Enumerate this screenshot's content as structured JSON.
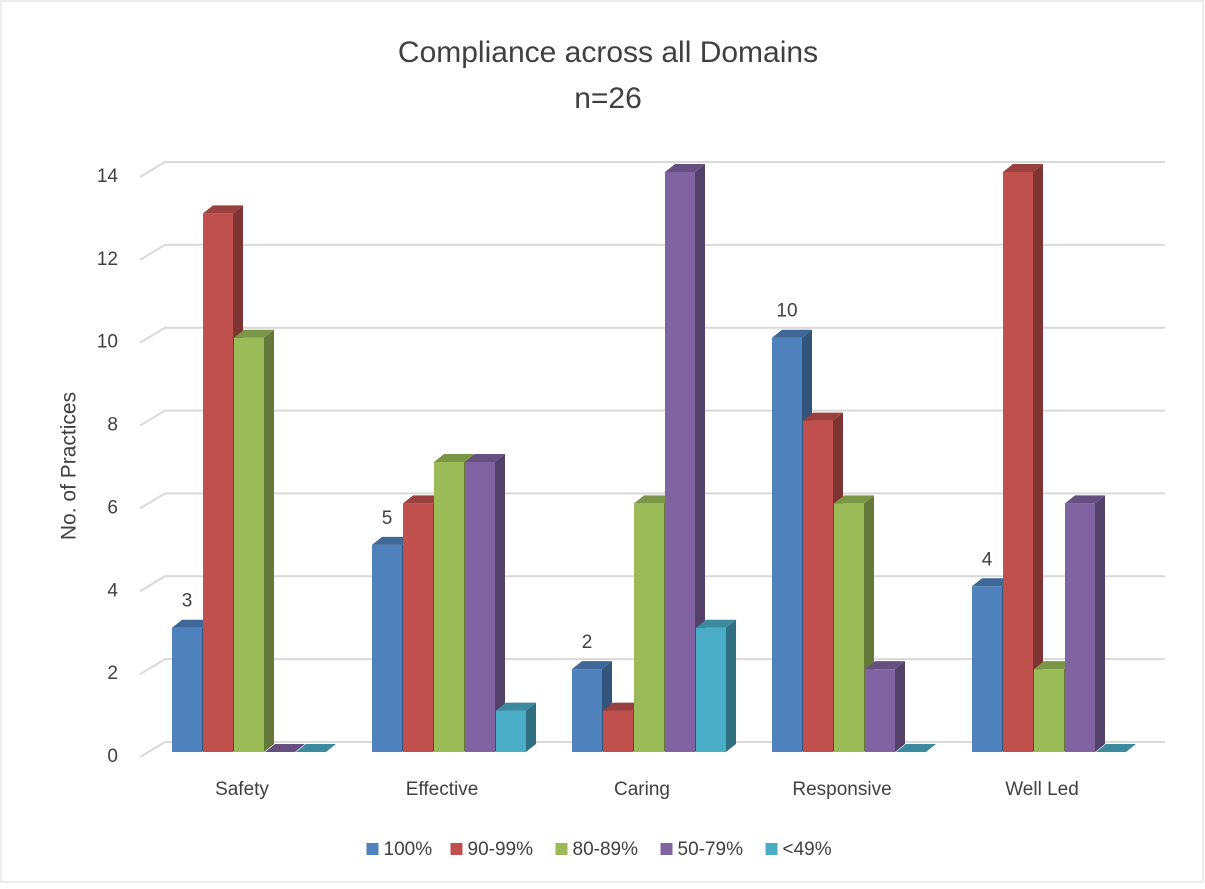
{
  "chart_data": {
    "type": "bar3d",
    "title": "Compliance across all Domains",
    "subtitle": "n=26",
    "y_label": "No. of Practices",
    "categories": [
      "Safety",
      "Effective",
      "Caring",
      "Responsive",
      "Well Led"
    ],
    "series": [
      {
        "name": "100%",
        "color": "#4f81bd",
        "values": [
          3,
          5,
          2,
          10,
          4
        ],
        "data_labels": true
      },
      {
        "name": "90-99%",
        "color": "#c0504d",
        "values": [
          13,
          6,
          1,
          8,
          14
        ]
      },
      {
        "name": "80-89%",
        "color": "#9bbb59",
        "values": [
          10,
          7,
          6,
          6,
          2
        ]
      },
      {
        "name": "50-79%",
        "color": "#8064a2",
        "values": [
          0,
          7,
          14,
          2,
          6
        ]
      },
      {
        "name": "<49%",
        "color": "#4bacc6",
        "values": [
          0,
          1,
          3,
          0,
          0
        ]
      }
    ],
    "ylim": [
      0,
      14
    ],
    "yticks": [
      0,
      2,
      4,
      6,
      8,
      10,
      12,
      14
    ],
    "grid": true,
    "legend": "bottom"
  }
}
